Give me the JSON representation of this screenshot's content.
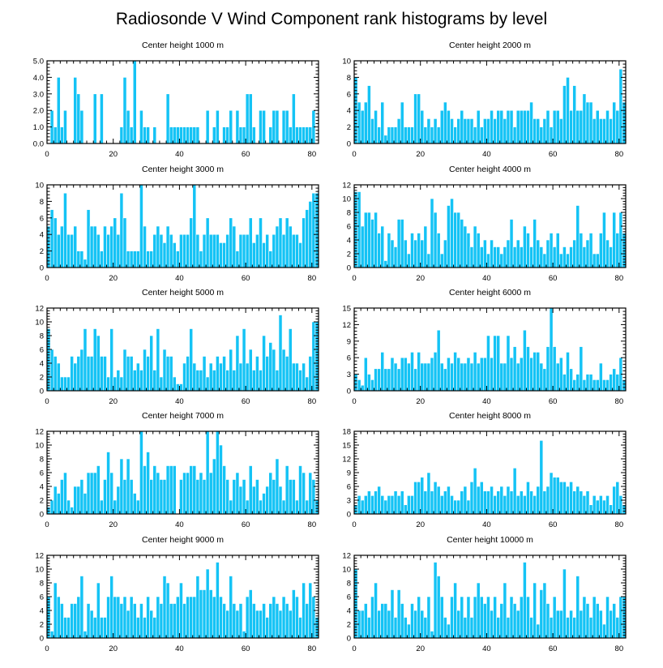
{
  "title": "Radiosonde V Wind Component rank histograms by level",
  "colors": {
    "bar": "#14c3f5",
    "frame": "#000000",
    "background": "#ffffff"
  },
  "chart_data": [
    {
      "type": "bar",
      "title": "Center height 1000 m",
      "xlim": [
        0,
        82
      ],
      "ylim": [
        0,
        5
      ],
      "xticks": [
        "0",
        "20",
        "40",
        "60",
        "80"
      ],
      "xtick_values": [
        0,
        20,
        40,
        60,
        80
      ],
      "yticks": [
        "0.0",
        "1.0",
        "2.0",
        "3.0",
        "4.0",
        "5.0"
      ],
      "ytick_values": [
        0,
        1,
        2,
        3,
        4,
        5
      ],
      "values": [
        0,
        2,
        1,
        4,
        1,
        2,
        0,
        0,
        4,
        3,
        2,
        0,
        0,
        0,
        3,
        0,
        3,
        0,
        0,
        0,
        0,
        0,
        1,
        4,
        2,
        1,
        5,
        0,
        2,
        1,
        1,
        0,
        1,
        0,
        0,
        0,
        3,
        1,
        1,
        1,
        1,
        1,
        1,
        1,
        1,
        1,
        0,
        0,
        2,
        0,
        1,
        2,
        0,
        1,
        1,
        2,
        0,
        2,
        1,
        1,
        3,
        3,
        1,
        0,
        2,
        2,
        0,
        1,
        2,
        2,
        0,
        2,
        2,
        1,
        3,
        1,
        1,
        1,
        1,
        1,
        2,
        0
      ]
    },
    {
      "type": "bar",
      "title": "Center height 2000 m",
      "xlim": [
        0,
        82
      ],
      "ylim": [
        0,
        10
      ],
      "xticks": [
        "0",
        "20",
        "40",
        "60",
        "80"
      ],
      "xtick_values": [
        0,
        20,
        40,
        60,
        80
      ],
      "yticks": [
        "0",
        "2",
        "4",
        "6",
        "8",
        "10"
      ],
      "ytick_values": [
        0,
        2,
        4,
        6,
        8,
        10
      ],
      "values": [
        8,
        5,
        4,
        5,
        7,
        3,
        4,
        2,
        5,
        1,
        2,
        2,
        2,
        3,
        5,
        2,
        2,
        2,
        6,
        6,
        4,
        2,
        3,
        2,
        3,
        2,
        4,
        5,
        4,
        3,
        2,
        3,
        4,
        3,
        3,
        3,
        2,
        4,
        2,
        3,
        3,
        4,
        3,
        4,
        4,
        3,
        4,
        4,
        2,
        4,
        4,
        4,
        4,
        5,
        3,
        3,
        2,
        3,
        4,
        2,
        4,
        4,
        3,
        7,
        8,
        4,
        7,
        4,
        4,
        6,
        5,
        5,
        3,
        4,
        3,
        3,
        4,
        3,
        5,
        4,
        9,
        5
      ]
    },
    {
      "type": "bar",
      "title": "Center height 3000 m",
      "xlim": [
        0,
        82
      ],
      "ylim": [
        0,
        10
      ],
      "xticks": [
        "0",
        "20",
        "40",
        "60",
        "80"
      ],
      "xtick_values": [
        0,
        20,
        40,
        60,
        80
      ],
      "yticks": [
        "0",
        "2",
        "4",
        "6",
        "8",
        "10"
      ],
      "ytick_values": [
        0,
        2,
        4,
        6,
        8,
        10
      ],
      "values": [
        5,
        7,
        6,
        4,
        5,
        9,
        4,
        4,
        5,
        2,
        2,
        1,
        7,
        5,
        5,
        4,
        2,
        5,
        4,
        5,
        6,
        4,
        9,
        6,
        2,
        2,
        2,
        2,
        10,
        5,
        2,
        2,
        4,
        5,
        4,
        3,
        5,
        4,
        3,
        2,
        4,
        4,
        4,
        6,
        10,
        4,
        2,
        4,
        6,
        4,
        4,
        4,
        3,
        3,
        4,
        6,
        5,
        2,
        4,
        4,
        4,
        6,
        3,
        4,
        6,
        3,
        4,
        2,
        4,
        5,
        6,
        4,
        6,
        5,
        4,
        4,
        3,
        6,
        7,
        8,
        9,
        9
      ]
    },
    {
      "type": "bar",
      "title": "Center height 4000 m",
      "xlim": [
        0,
        82
      ],
      "ylim": [
        0,
        12
      ],
      "xticks": [
        "0",
        "20",
        "40",
        "60",
        "80"
      ],
      "xtick_values": [
        0,
        20,
        40,
        60,
        80
      ],
      "yticks": [
        "0",
        "2",
        "4",
        "6",
        "8",
        "10",
        "12"
      ],
      "ytick_values": [
        0,
        2,
        4,
        6,
        8,
        10,
        12
      ],
      "values": [
        11,
        11,
        6,
        8,
        8,
        7,
        8,
        5,
        6,
        1,
        5,
        4,
        3,
        7,
        7,
        4,
        2,
        5,
        4,
        5,
        4,
        6,
        2,
        10,
        8,
        5,
        2,
        4,
        9,
        10,
        8,
        8,
        7,
        6,
        5,
        3,
        6,
        5,
        3,
        4,
        2,
        4,
        3,
        3,
        2,
        3,
        4,
        7,
        3,
        4,
        3,
        6,
        5,
        3,
        7,
        4,
        3,
        2,
        4,
        5,
        3,
        5,
        2,
        3,
        2,
        3,
        4,
        9,
        5,
        3,
        4,
        5,
        2,
        2,
        5,
        8,
        4,
        3,
        8,
        5,
        8,
        5
      ]
    },
    {
      "type": "bar",
      "title": "Center height 5000 m",
      "xlim": [
        0,
        82
      ],
      "ylim": [
        0,
        12
      ],
      "xticks": [
        "0",
        "20",
        "40",
        "60",
        "80"
      ],
      "xtick_values": [
        0,
        20,
        40,
        60,
        80
      ],
      "yticks": [
        "0",
        "2",
        "4",
        "6",
        "8",
        "10",
        "12"
      ],
      "ytick_values": [
        0,
        2,
        4,
        6,
        8,
        10,
        12
      ],
      "values": [
        9,
        6,
        5,
        4,
        2,
        2,
        2,
        5,
        4,
        5,
        6,
        9,
        5,
        5,
        9,
        8,
        5,
        5,
        2,
        9,
        2,
        3,
        2,
        6,
        5,
        5,
        3,
        4,
        3,
        6,
        5,
        8,
        3,
        9,
        2,
        6,
        5,
        5,
        2,
        1,
        1,
        4,
        5,
        9,
        4,
        3,
        3,
        5,
        2,
        4,
        3,
        5,
        4,
        5,
        3,
        6,
        3,
        8,
        4,
        9,
        4,
        6,
        3,
        5,
        3,
        8,
        5,
        7,
        6,
        3,
        11,
        6,
        5,
        9,
        4,
        4,
        3,
        4,
        2,
        5,
        10,
        10
      ]
    },
    {
      "type": "bar",
      "title": "Center height 6000 m",
      "xlim": [
        0,
        82
      ],
      "ylim": [
        0,
        15
      ],
      "xticks": [
        "0",
        "20",
        "40",
        "60",
        "80"
      ],
      "xtick_values": [
        0,
        20,
        40,
        60,
        80
      ],
      "yticks": [
        "0",
        "3",
        "6",
        "9",
        "12",
        "15"
      ],
      "ytick_values": [
        0,
        3,
        6,
        9,
        12,
        15
      ],
      "values": [
        3,
        2,
        1,
        6,
        3,
        2,
        4,
        4,
        7,
        4,
        4,
        6,
        5,
        4,
        6,
        6,
        5,
        7,
        4,
        7,
        5,
        5,
        5,
        6,
        7,
        11,
        5,
        4,
        6,
        5,
        7,
        6,
        5,
        5,
        6,
        5,
        7,
        5,
        6,
        6,
        10,
        6,
        10,
        10,
        5,
        5,
        10,
        6,
        8,
        5,
        6,
        11,
        8,
        6,
        7,
        7,
        5,
        4,
        8,
        15,
        8,
        5,
        6,
        3,
        7,
        4,
        2,
        3,
        8,
        2,
        3,
        3,
        2,
        2,
        5,
        2,
        2,
        3,
        4,
        3,
        6,
        2
      ]
    },
    {
      "type": "bar",
      "title": "Center height 7000 m",
      "xlim": [
        0,
        82
      ],
      "ylim": [
        0,
        12
      ],
      "xticks": [
        "0",
        "20",
        "40",
        "60",
        "80"
      ],
      "xtick_values": [
        0,
        20,
        40,
        60,
        80
      ],
      "yticks": [
        "0",
        "2",
        "4",
        "6",
        "8",
        "10",
        "12"
      ],
      "ytick_values": [
        0,
        2,
        4,
        6,
        8,
        10,
        12
      ],
      "values": [
        1,
        2,
        4,
        3,
        5,
        6,
        2,
        1,
        4,
        4,
        5,
        3,
        6,
        6,
        6,
        7,
        2,
        5,
        9,
        6,
        2,
        4,
        8,
        5,
        8,
        5,
        3,
        2,
        12,
        7,
        9,
        5,
        7,
        6,
        5,
        5,
        7,
        7,
        7,
        0,
        5,
        6,
        6,
        7,
        7,
        5,
        6,
        5,
        12,
        6,
        8,
        12,
        10,
        7,
        5,
        2,
        5,
        6,
        4,
        5,
        2,
        7,
        4,
        5,
        2,
        3,
        4,
        6,
        5,
        8,
        4,
        2,
        7,
        5,
        5,
        2,
        7,
        6,
        2,
        6,
        5,
        2
      ]
    },
    {
      "type": "bar",
      "title": "Center height 8000 m",
      "xlim": [
        0,
        82
      ],
      "ylim": [
        0,
        18
      ],
      "xticks": [
        "0",
        "20",
        "40",
        "60",
        "80"
      ],
      "xtick_values": [
        0,
        20,
        40,
        60,
        80
      ],
      "yticks": [
        "0",
        "3",
        "6",
        "9",
        "12",
        "15",
        "18"
      ],
      "ytick_values": [
        0,
        3,
        6,
        9,
        12,
        15,
        18
      ],
      "values": [
        2,
        4,
        3,
        4,
        5,
        4,
        5,
        6,
        4,
        3,
        4,
        4,
        5,
        4,
        5,
        2,
        4,
        4,
        7,
        7,
        8,
        5,
        9,
        5,
        7,
        6,
        4,
        5,
        6,
        4,
        3,
        3,
        5,
        6,
        3,
        7,
        10,
        6,
        7,
        5,
        5,
        6,
        4,
        5,
        6,
        4,
        6,
        5,
        10,
        4,
        5,
        4,
        7,
        5,
        4,
        6,
        16,
        5,
        6,
        9,
        8,
        8,
        7,
        7,
        6,
        7,
        5,
        6,
        5,
        4,
        5,
        2,
        4,
        3,
        4,
        3,
        4,
        2,
        6,
        7,
        4,
        2
      ]
    },
    {
      "type": "bar",
      "title": "Center height 9000 m",
      "xlim": [
        0,
        82
      ],
      "ylim": [
        0,
        12
      ],
      "xticks": [
        "0",
        "20",
        "40",
        "60",
        "80"
      ],
      "xtick_values": [
        0,
        20,
        40,
        60,
        80
      ],
      "yticks": [
        "0",
        "2",
        "4",
        "6",
        "8",
        "10",
        "12"
      ],
      "ytick_values": [
        0,
        2,
        4,
        6,
        8,
        10,
        12
      ],
      "values": [
        6,
        1,
        8,
        6,
        5,
        3,
        3,
        5,
        5,
        6,
        9,
        1,
        5,
        4,
        3,
        8,
        3,
        3,
        6,
        9,
        6,
        6,
        5,
        6,
        4,
        6,
        5,
        3,
        5,
        3,
        6,
        4,
        3,
        6,
        5,
        9,
        8,
        5,
        5,
        6,
        8,
        5,
        6,
        6,
        6,
        9,
        7,
        7,
        10,
        7,
        6,
        11,
        6,
        5,
        4,
        9,
        5,
        4,
        5,
        1,
        6,
        7,
        5,
        4,
        4,
        5,
        3,
        5,
        6,
        5,
        4,
        6,
        5,
        4,
        7,
        6,
        3,
        8,
        5,
        8,
        6,
        3
      ]
    },
    {
      "type": "bar",
      "title": "Center height 10000 m",
      "xlim": [
        0,
        82
      ],
      "ylim": [
        0,
        12
      ],
      "xticks": [
        "0",
        "20",
        "40",
        "60",
        "80"
      ],
      "xtick_values": [
        0,
        20,
        40,
        60,
        80
      ],
      "yticks": [
        "0",
        "2",
        "4",
        "6",
        "8",
        "10",
        "12"
      ],
      "ytick_values": [
        0,
        2,
        4,
        6,
        8,
        10,
        12
      ],
      "values": [
        10,
        4,
        4,
        5,
        3,
        6,
        8,
        4,
        5,
        5,
        4,
        7,
        3,
        7,
        5,
        3,
        2,
        5,
        4,
        6,
        4,
        3,
        6,
        1,
        11,
        9,
        6,
        3,
        2,
        6,
        8,
        4,
        6,
        3,
        6,
        3,
        6,
        8,
        6,
        5,
        6,
        4,
        6,
        3,
        5,
        8,
        3,
        6,
        5,
        4,
        6,
        11,
        6,
        3,
        8,
        2,
        7,
        8,
        5,
        3,
        6,
        4,
        4,
        10,
        3,
        4,
        3,
        9,
        4,
        6,
        5,
        3,
        6,
        5,
        4,
        2,
        6,
        4,
        5,
        3,
        6,
        6
      ]
    }
  ]
}
